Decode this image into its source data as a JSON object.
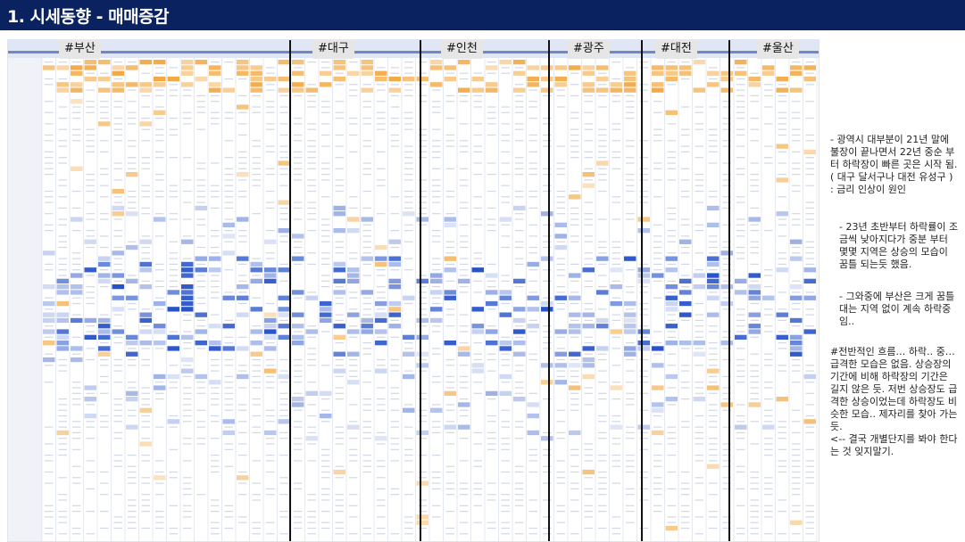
{
  "title": "1. 시세동향 - 매매증감",
  "regions": [
    "#부산",
    "#대구",
    "#인천",
    "#광주",
    "#대전",
    "#울산"
  ],
  "notes": [
    "- 광역시 대부분이 21년 말에 불장이 끝나면서 22년 중순 부터 하락장이 빠른 곳은 시작 됨. ( 대구 달서구나 대전 유성구 )\n: 금리 인상이 원인",
    "- 23년 초반부터 하락률이 조금씩 낮아지다가 중분 부터 몇몇 지역은 상승의 모습이 꿈틀 되는듯 했음.",
    "- 그와중에 부산은 크게 꿈틀대는 지역 없이 계속 하락중임..",
    "#전반적인 흐름… 하락.. 중… 급격한 모습은 없음. 상승장의 기간에 비해 하락장의 기간은 길지 않은 듯. 저번 상승장도 급격한 상승이었는데 하락장도 비슷한 모습.. 제자리를 찾아 가는 듯.\n<-- 결국 개별단지를 봐야 한다는 것 잊지말기."
  ],
  "colors": {
    "title_bar": "#0b2260",
    "rise": "#f0a030",
    "fall": "#2450c8",
    "header_blue": "#2a4aa0"
  }
}
